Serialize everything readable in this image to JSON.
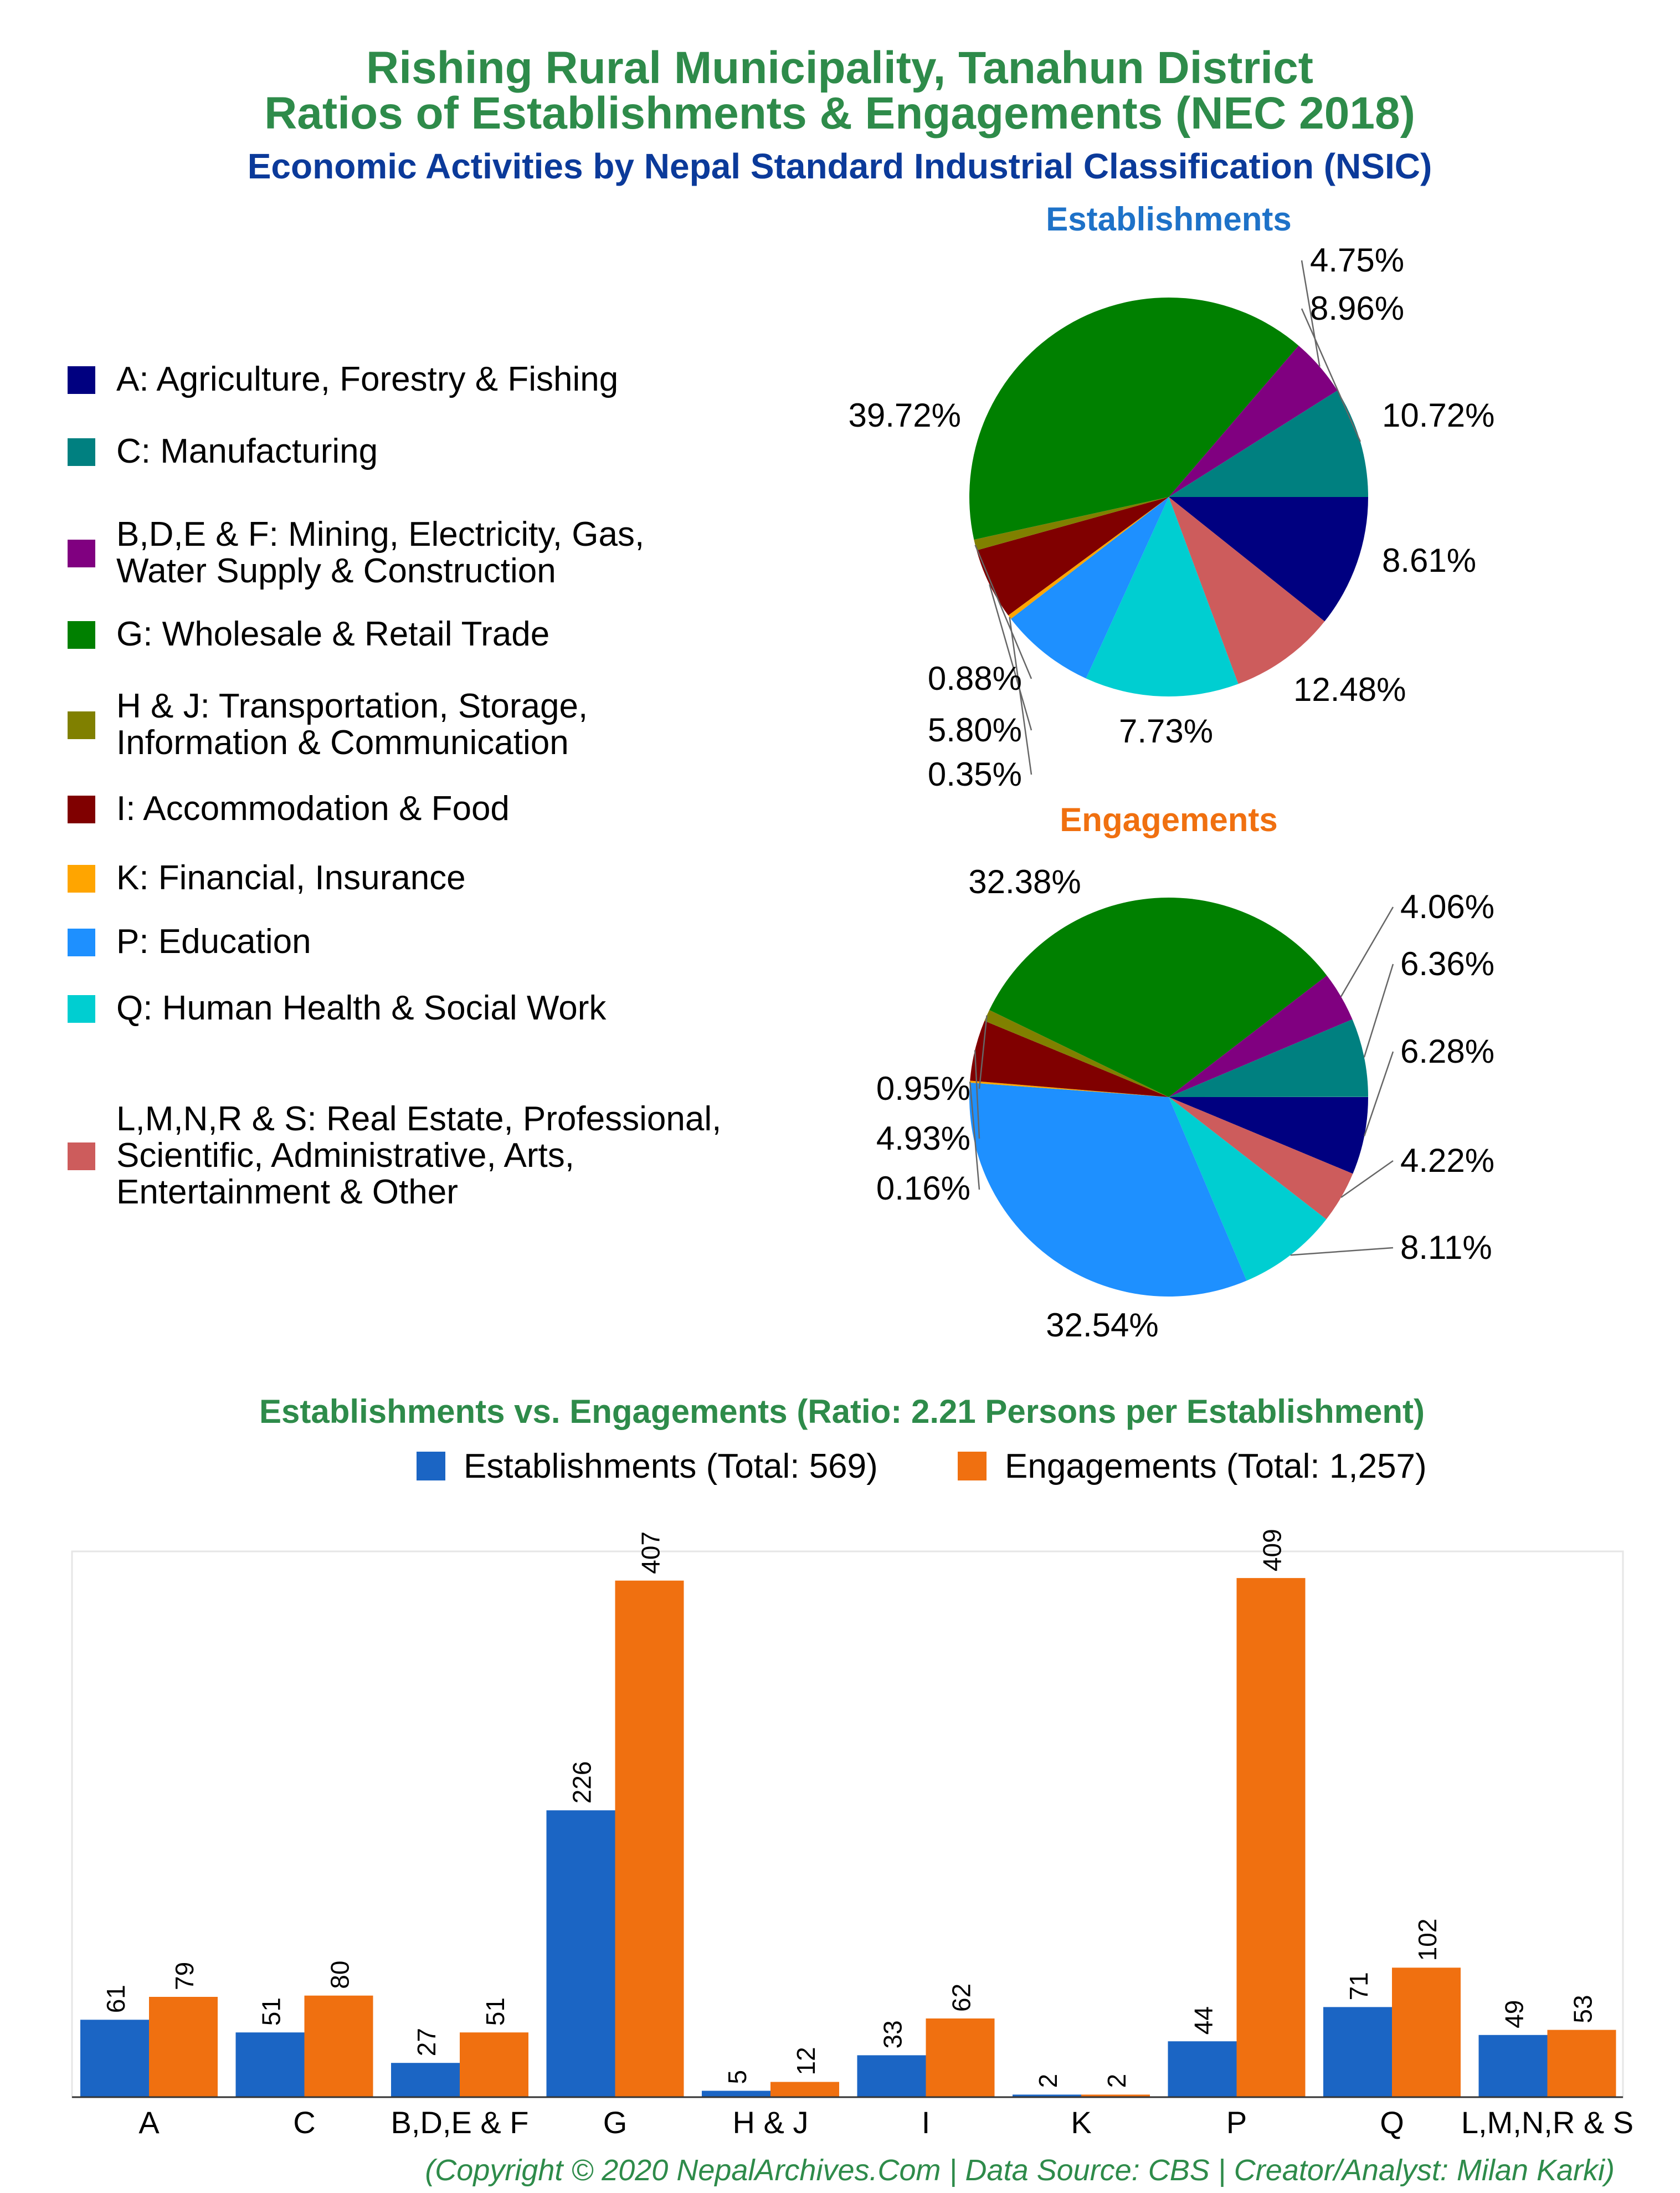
{
  "header": {
    "title_line1": "Rishing Rural Municipality, Tanahun District",
    "title_line2": "Ratios of Establishments & Engagements (NEC 2018)",
    "subtitle": "Economic Activities by Nepal Standard Industrial Classification (NSIC)"
  },
  "colors": {
    "title": "#2E8B4A",
    "subtitle": "#0B3A9A",
    "establishments_title": "#1E72C8",
    "engagements_title": "#F07010",
    "bar_establishments": "#1B65C4",
    "bar_engagements": "#F07010",
    "footer": "#2E8B4A"
  },
  "legend": {
    "items": [
      {
        "code": "A",
        "label_lines": [
          "A: Agriculture, Forestry & Fishing"
        ],
        "color": "#000080"
      },
      {
        "code": "C",
        "label_lines": [
          "C: Manufacturing"
        ],
        "color": "#008080"
      },
      {
        "code": "BDEF",
        "label_lines": [
          "B,D,E & F: Mining, Electricity, Gas,",
          "Water Supply & Construction"
        ],
        "color": "#800080"
      },
      {
        "code": "G",
        "label_lines": [
          "G: Wholesale & Retail Trade"
        ],
        "color": "#008000"
      },
      {
        "code": "HJ",
        "label_lines": [
          "H & J: Transportation, Storage,",
          "Information & Communication"
        ],
        "color": "#808000"
      },
      {
        "code": "I",
        "label_lines": [
          "I: Accommodation & Food"
        ],
        "color": "#800000"
      },
      {
        "code": "K",
        "label_lines": [
          "K: Financial, Insurance"
        ],
        "color": "#FFA500"
      },
      {
        "code": "P",
        "label_lines": [
          "P: Education"
        ],
        "color": "#1E90FF"
      },
      {
        "code": "Q",
        "label_lines": [
          "Q: Human Health & Social Work"
        ],
        "color": "#00CED1"
      },
      {
        "code": "LMNRS",
        "label_lines": [
          "L,M,N,R & S: Real Estate, Professional,",
          "Scientific, Administrative, Arts,",
          "Entertainment & Other"
        ],
        "color": "#CD5C5C"
      }
    ]
  },
  "chart_data": [
    {
      "type": "pie",
      "title": "Establishments",
      "slices": [
        {
          "code": "A",
          "value": 10.72,
          "label": "10.72%"
        },
        {
          "code": "LMNRS",
          "value": 8.61,
          "label": "8.61%"
        },
        {
          "code": "Q",
          "value": 12.48,
          "label": "12.48%"
        },
        {
          "code": "P",
          "value": 7.73,
          "label": "7.73%"
        },
        {
          "code": "K",
          "value": 0.35,
          "label": "0.35%"
        },
        {
          "code": "I",
          "value": 5.8,
          "label": "5.80%"
        },
        {
          "code": "HJ",
          "value": 0.88,
          "label": "0.88%"
        },
        {
          "code": "G",
          "value": 39.72,
          "label": "39.72%"
        },
        {
          "code": "BDEF",
          "value": 4.75,
          "label": "4.75%"
        },
        {
          "code": "C",
          "value": 8.96,
          "label": "8.96%"
        }
      ]
    },
    {
      "type": "pie",
      "title": "Engagements",
      "slices": [
        {
          "code": "A",
          "value": 6.28,
          "label": "6.28%"
        },
        {
          "code": "LMNRS",
          "value": 4.22,
          "label": "4.22%"
        },
        {
          "code": "Q",
          "value": 8.11,
          "label": "8.11%"
        },
        {
          "code": "P",
          "value": 32.54,
          "label": "32.54%"
        },
        {
          "code": "K",
          "value": 0.16,
          "label": "0.16%"
        },
        {
          "code": "I",
          "value": 4.93,
          "label": "4.93%"
        },
        {
          "code": "HJ",
          "value": 0.95,
          "label": "0.95%"
        },
        {
          "code": "G",
          "value": 32.38,
          "label": "32.38%"
        },
        {
          "code": "BDEF",
          "value": 4.06,
          "label": "4.06%"
        },
        {
          "code": "C",
          "value": 6.36,
          "label": "6.36%"
        }
      ]
    },
    {
      "type": "bar",
      "title": "Establishments vs. Engagements (Ratio: 2.21 Persons per Establishment)",
      "categories": [
        "A",
        "C",
        "B,D,E & F",
        "G",
        "H & J",
        "I",
        "K",
        "P",
        "Q",
        "L,M,N,R & S"
      ],
      "series": [
        {
          "name": "Establishments (Total: 569)",
          "values": [
            61,
            51,
            27,
            226,
            5,
            33,
            2,
            44,
            71,
            49
          ]
        },
        {
          "name": "Engagements (Total: 1,257)",
          "values": [
            79,
            80,
            51,
            407,
            12,
            62,
            2,
            409,
            102,
            53
          ]
        }
      ],
      "ylim": [
        0,
        430
      ],
      "legend_position": "top"
    }
  ],
  "footer": "(Copyright © 2020 NepalArchives.Com | Data Source: CBS | Creator/Analyst: Milan Karki)"
}
